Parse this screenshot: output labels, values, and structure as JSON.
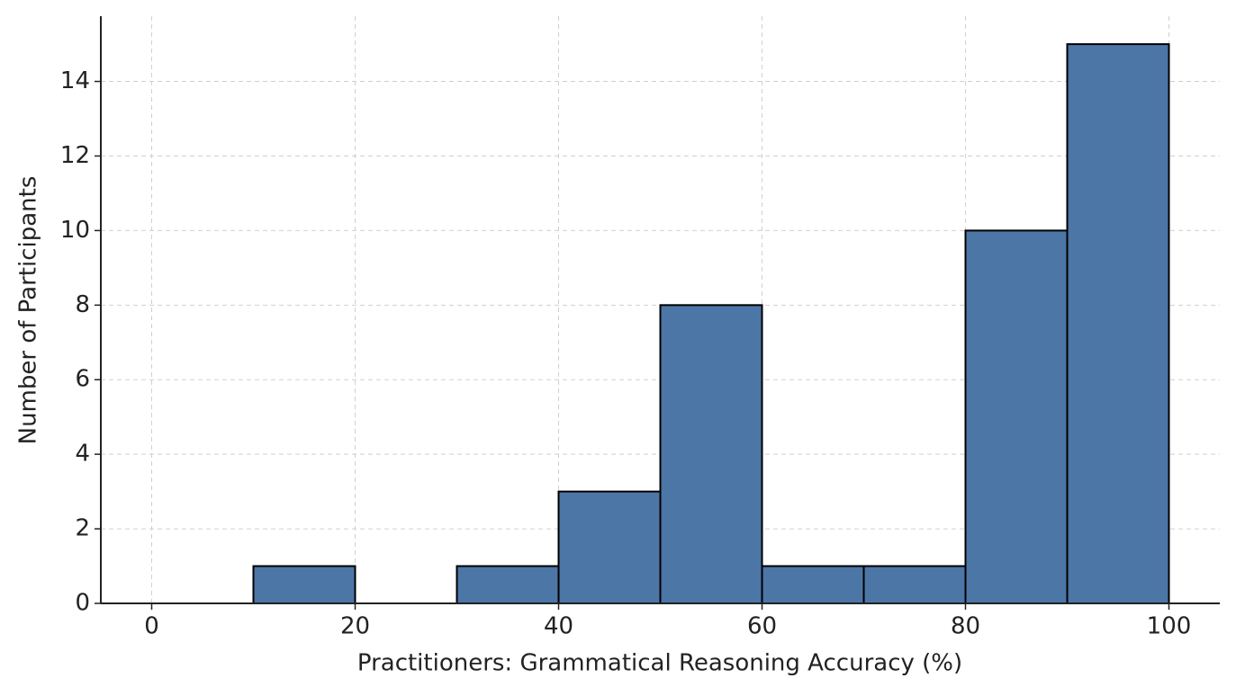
{
  "chart_data": {
    "type": "histogram",
    "x_label": "Practitioners: Grammatical Reasoning Accuracy (%)",
    "y_label": "Number of Participants",
    "bins": [
      0,
      10,
      20,
      30,
      40,
      50,
      60,
      70,
      80,
      90,
      100
    ],
    "values": [
      0,
      1,
      0,
      1,
      3,
      8,
      1,
      1,
      10,
      15
    ],
    "color": "#4c76a6",
    "edgecolor": "#000000",
    "xlim": [
      -5,
      105
    ],
    "ylim": [
      0,
      15.75
    ],
    "xticks": [
      0,
      20,
      40,
      60,
      80,
      100
    ],
    "yticks": [
      0,
      2,
      4,
      6,
      8,
      10,
      12,
      14
    ],
    "grid": true
  }
}
